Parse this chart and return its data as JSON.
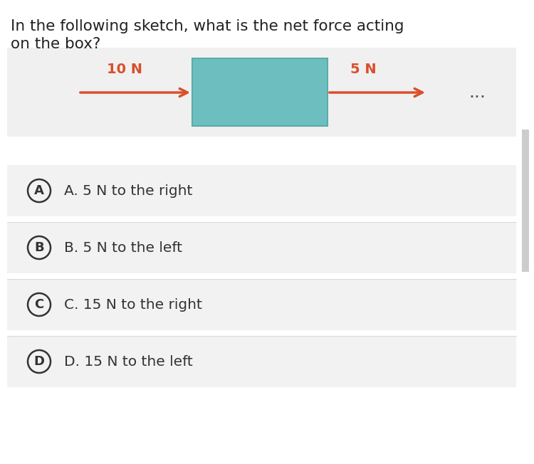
{
  "title_line1": "In the following sketch, what is the net force acting",
  "title_line2": "on the box?",
  "bg_color": "#ffffff",
  "sketch_bg": "#f0f0f0",
  "box_color": "#6dbfbf",
  "box_edge_color": "#5aabab",
  "arrow_color": "#d94f2b",
  "left_arrow_label": "10 N",
  "right_arrow_label": "5 N",
  "dots_color": "#555555",
  "options": [
    {
      "letter": "A",
      "text": "A. 5 N to the right"
    },
    {
      "letter": "B",
      "text": "B. 5 N to the left"
    },
    {
      "letter": "C",
      "text": "C. 15 N to the right"
    },
    {
      "letter": "D",
      "text": "D. 15 N to the left"
    }
  ],
  "option_bg": "#f2f2f2",
  "option_text_color": "#333333",
  "circle_edge_color": "#333333",
  "title_color": "#222222"
}
